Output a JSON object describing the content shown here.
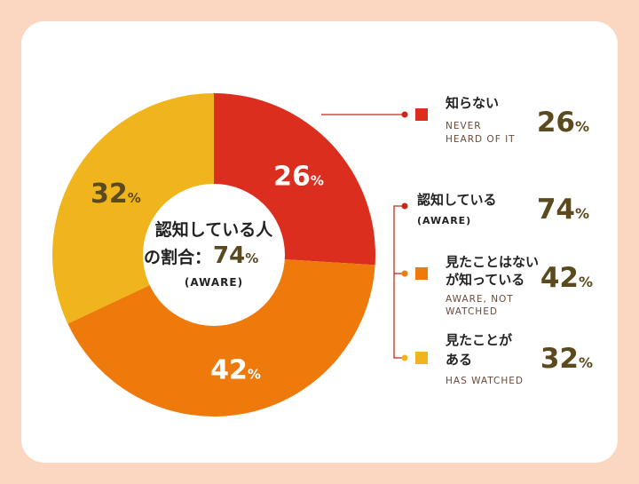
{
  "chart_data": {
    "type": "pie",
    "donut": true,
    "categories": [
      "知らない",
      "見たことはないが知っている",
      "見たことがある"
    ],
    "values": [
      26,
      42,
      32
    ],
    "unit": "%",
    "colors": [
      "#dc2e1e",
      "#ee7a0c",
      "#f0b51c"
    ],
    "slice_label_colors": [
      "#ffffff",
      "#ffffff",
      "#5a4a1e"
    ],
    "center": {
      "line1": "認知している人",
      "line2_prefix": "の割合：",
      "line2_value": "74",
      "line2_unit": "%",
      "line3": "(AWARE)"
    },
    "legend": [
      {
        "jp": [
          "知らない"
        ],
        "en": [
          "NEVER",
          "HEARD OF IT"
        ],
        "value": "26",
        "unit": "%",
        "color": "#dc2e1e"
      },
      {
        "jp": [
          "認知している"
        ],
        "en": [
          "(AWARE)"
        ],
        "value": "74",
        "unit": "%",
        "color": "#dc2e1e",
        "group": true
      },
      {
        "jp": [
          "見たことはない",
          "が知っている"
        ],
        "en": [
          "AWARE, NOT",
          "WATCHED"
        ],
        "value": "42",
        "unit": "%",
        "color": "#ee7a0c"
      },
      {
        "jp": [
          "見たことが",
          "ある"
        ],
        "en": [
          "HAS WATCHED"
        ],
        "value": "32",
        "unit": "%",
        "color": "#f0b51c"
      }
    ],
    "legend_placement": "right"
  }
}
